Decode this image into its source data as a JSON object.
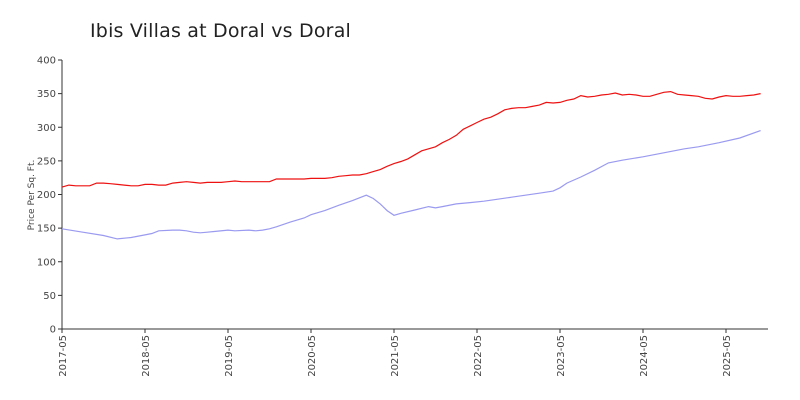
{
  "chart_data": {
    "type": "line",
    "title": "Ibis Villas at Doral vs Doral",
    "xlabel": "",
    "ylabel": "Price Per Sq. Ft.",
    "ylim": [
      0,
      400
    ],
    "yticks": [
      0,
      50,
      100,
      150,
      200,
      250,
      300,
      350,
      400
    ],
    "xticks": [
      "2017-05",
      "2018-05",
      "2019-05",
      "2020-05",
      "2021-05",
      "2022-05",
      "2023-05",
      "2024-05",
      "2025-05"
    ],
    "grid": false,
    "legend": "none",
    "series": [
      {
        "color": "#ee1111",
        "points": [
          [
            "2017-05",
            211
          ],
          [
            "2017-06",
            214
          ],
          [
            "2017-07",
            213
          ],
          [
            "2017-08",
            213
          ],
          [
            "2017-09",
            213
          ],
          [
            "2017-10",
            217
          ],
          [
            "2017-11",
            217
          ],
          [
            "2017-12",
            216
          ],
          [
            "2018-01",
            215
          ],
          [
            "2018-02",
            214
          ],
          [
            "2018-03",
            213
          ],
          [
            "2018-04",
            213
          ],
          [
            "2018-05",
            215
          ],
          [
            "2018-06",
            215
          ],
          [
            "2018-07",
            214
          ],
          [
            "2018-08",
            214
          ],
          [
            "2018-09",
            217
          ],
          [
            "2018-10",
            218
          ],
          [
            "2018-11",
            219
          ],
          [
            "2018-12",
            218
          ],
          [
            "2019-01",
            217
          ],
          [
            "2019-02",
            218
          ],
          [
            "2019-03",
            218
          ],
          [
            "2019-04",
            218
          ],
          [
            "2019-05",
            219
          ],
          [
            "2019-06",
            220
          ],
          [
            "2019-07",
            219
          ],
          [
            "2019-08",
            219
          ],
          [
            "2019-09",
            219
          ],
          [
            "2019-10",
            219
          ],
          [
            "2019-11",
            219
          ],
          [
            "2019-12",
            223
          ],
          [
            "2020-01",
            223
          ],
          [
            "2020-02",
            223
          ],
          [
            "2020-03",
            223
          ],
          [
            "2020-04",
            223
          ],
          [
            "2020-05",
            224
          ],
          [
            "2020-06",
            224
          ],
          [
            "2020-07",
            224
          ],
          [
            "2020-08",
            225
          ],
          [
            "2020-09",
            227
          ],
          [
            "2020-10",
            228
          ],
          [
            "2020-11",
            229
          ],
          [
            "2020-12",
            229
          ],
          [
            "2021-01",
            231
          ],
          [
            "2021-02",
            234
          ],
          [
            "2021-03",
            237
          ],
          [
            "2021-04",
            242
          ],
          [
            "2021-05",
            246
          ],
          [
            "2021-06",
            249
          ],
          [
            "2021-07",
            253
          ],
          [
            "2021-08",
            259
          ],
          [
            "2021-09",
            265
          ],
          [
            "2021-10",
            268
          ],
          [
            "2021-11",
            271
          ],
          [
            "2021-12",
            277
          ],
          [
            "2022-01",
            282
          ],
          [
            "2022-02",
            288
          ],
          [
            "2022-03",
            297
          ],
          [
            "2022-04",
            302
          ],
          [
            "2022-05",
            307
          ],
          [
            "2022-06",
            312
          ],
          [
            "2022-07",
            315
          ],
          [
            "2022-08",
            320
          ],
          [
            "2022-09",
            326
          ],
          [
            "2022-10",
            328
          ],
          [
            "2022-11",
            329
          ],
          [
            "2022-12",
            329
          ],
          [
            "2023-01",
            331
          ],
          [
            "2023-02",
            333
          ],
          [
            "2023-03",
            337
          ],
          [
            "2023-04",
            336
          ],
          [
            "2023-05",
            337
          ],
          [
            "2023-06",
            340
          ],
          [
            "2023-07",
            342
          ],
          [
            "2023-08",
            347
          ],
          [
            "2023-09",
            345
          ],
          [
            "2023-10",
            346
          ],
          [
            "2023-11",
            348
          ],
          [
            "2023-12",
            349
          ],
          [
            "2024-01",
            351
          ],
          [
            "2024-02",
            348
          ],
          [
            "2024-03",
            349
          ],
          [
            "2024-04",
            348
          ],
          [
            "2024-05",
            346
          ],
          [
            "2024-06",
            346
          ],
          [
            "2024-07",
            349
          ],
          [
            "2024-08",
            352
          ],
          [
            "2024-09",
            353
          ],
          [
            "2024-10",
            349
          ],
          [
            "2024-11",
            348
          ],
          [
            "2024-12",
            347
          ],
          [
            "2025-01",
            346
          ],
          [
            "2025-02",
            343
          ],
          [
            "2025-03",
            342
          ],
          [
            "2025-04",
            345
          ],
          [
            "2025-05",
            347
          ],
          [
            "2025-06",
            346
          ],
          [
            "2025-07",
            346
          ],
          [
            "2025-08",
            347
          ],
          [
            "2025-09",
            348
          ],
          [
            "2025-10",
            350
          ]
        ]
      },
      {
        "color": "#9a9af0",
        "points": [
          [
            "2017-05",
            149
          ],
          [
            "2017-08",
            144
          ],
          [
            "2017-11",
            139
          ],
          [
            "2018-01",
            134
          ],
          [
            "2018-03",
            136
          ],
          [
            "2018-05",
            140
          ],
          [
            "2018-06",
            142
          ],
          [
            "2018-07",
            146
          ],
          [
            "2018-09",
            147
          ],
          [
            "2018-10",
            147
          ],
          [
            "2018-11",
            146
          ],
          [
            "2018-12",
            144
          ],
          [
            "2019-01",
            143
          ],
          [
            "2019-02",
            144
          ],
          [
            "2019-03",
            145
          ],
          [
            "2019-05",
            147
          ],
          [
            "2019-06",
            146
          ],
          [
            "2019-08",
            147
          ],
          [
            "2019-09",
            146
          ],
          [
            "2019-10",
            147
          ],
          [
            "2019-11",
            149
          ],
          [
            "2019-12",
            152
          ],
          [
            "2020-02",
            159
          ],
          [
            "2020-04",
            165
          ],
          [
            "2020-05",
            170
          ],
          [
            "2020-07",
            176
          ],
          [
            "2020-09",
            184
          ],
          [
            "2020-11",
            191
          ],
          [
            "2021-01",
            199
          ],
          [
            "2021-02",
            194
          ],
          [
            "2021-03",
            186
          ],
          [
            "2021-04",
            176
          ],
          [
            "2021-05",
            169
          ],
          [
            "2021-06",
            172
          ],
          [
            "2021-08",
            177
          ],
          [
            "2021-10",
            182
          ],
          [
            "2021-11",
            180
          ],
          [
            "2021-12",
            182
          ],
          [
            "2022-02",
            186
          ],
          [
            "2022-04",
            188
          ],
          [
            "2022-06",
            190
          ],
          [
            "2022-08",
            193
          ],
          [
            "2022-10",
            196
          ],
          [
            "2022-12",
            199
          ],
          [
            "2023-02",
            202
          ],
          [
            "2023-04",
            205
          ],
          [
            "2023-05",
            210
          ],
          [
            "2023-06",
            217
          ],
          [
            "2023-08",
            226
          ],
          [
            "2023-10",
            236
          ],
          [
            "2023-12",
            247
          ],
          [
            "2024-02",
            251
          ],
          [
            "2024-05",
            256
          ],
          [
            "2024-08",
            262
          ],
          [
            "2024-11",
            268
          ],
          [
            "2025-01",
            271
          ],
          [
            "2025-04",
            277
          ],
          [
            "2025-07",
            284
          ],
          [
            "2025-10",
            295
          ]
        ]
      }
    ]
  }
}
